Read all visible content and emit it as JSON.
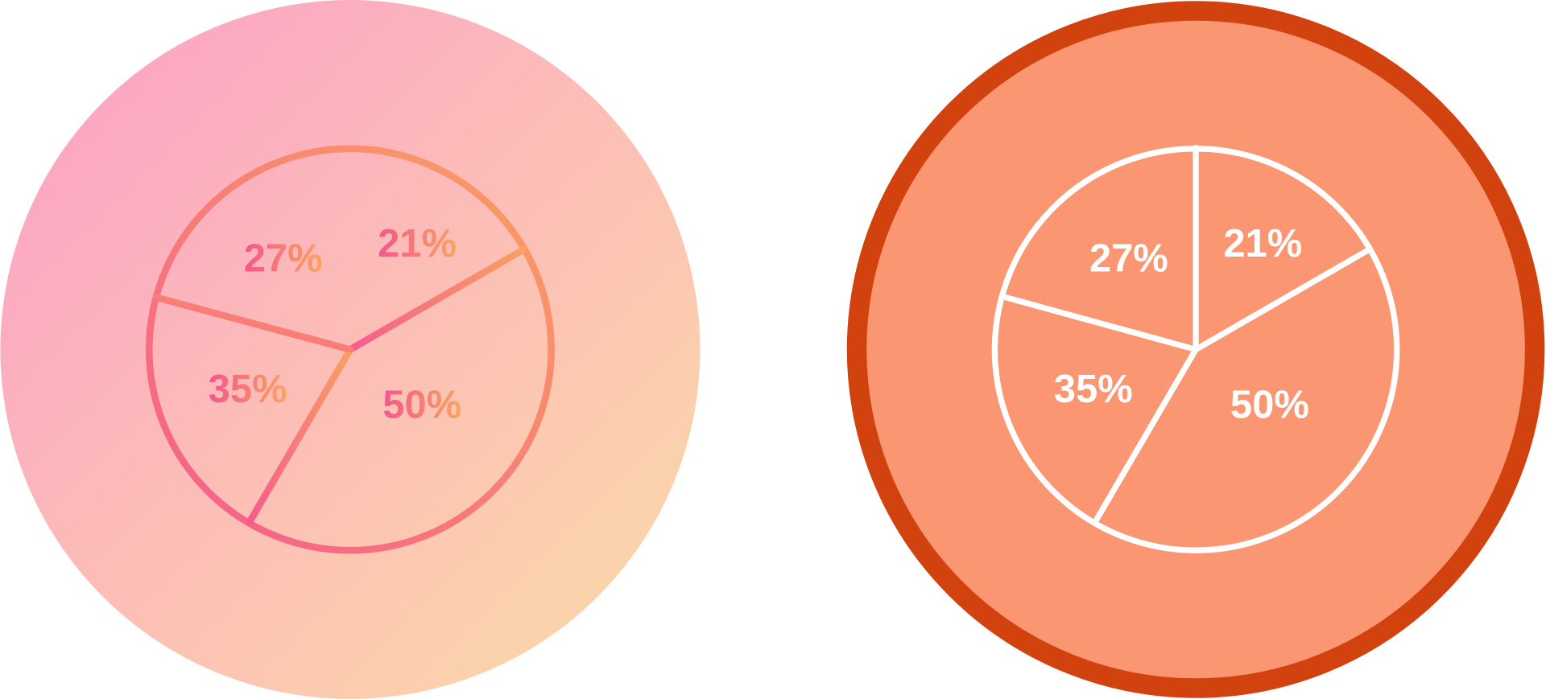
{
  "icons": [
    {
      "labels": [
        "27%",
        "21%",
        "35%",
        "50%"
      ]
    },
    {
      "labels": [
        "27%",
        "21%",
        "35%",
        "50%"
      ]
    }
  ]
}
